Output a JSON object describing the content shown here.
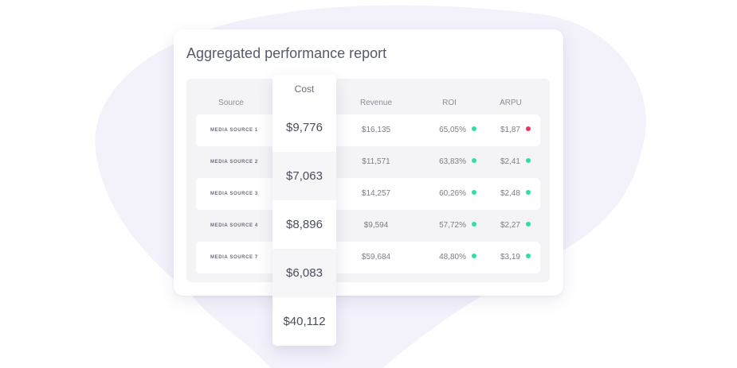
{
  "report": {
    "title": "Aggregated performance report",
    "headers": {
      "source": "Source",
      "cost": "Cost",
      "revenue": "Revenue",
      "roi": "ROI",
      "arpu": "ARPU"
    },
    "rows": [
      {
        "source": "MEDIA SOURCE 1",
        "cost": "$9,776",
        "revenue": "$16,135",
        "roi": "65,05%",
        "roi_status": "#2fe0a0",
        "arpu": "$1,87",
        "arpu_status": "#e8345a"
      },
      {
        "source": "MEDIA SOURCE 2",
        "cost": "$7,063",
        "revenue": "$11,571",
        "roi": "63,83%",
        "roi_status": "#2fe0a0",
        "arpu": "$2,41",
        "arpu_status": "#2fe0a0"
      },
      {
        "source": "MEDIA SOURCE 3",
        "cost": "$8,896",
        "revenue": "$14,257",
        "roi": "60,26%",
        "roi_status": "#2fe0a0",
        "arpu": "$2,48",
        "arpu_status": "#2fe0a0"
      },
      {
        "source": "MEDIA SOURCE 4",
        "cost": "$6,083",
        "revenue": "$9,594",
        "roi": "57,72%",
        "roi_status": "#2fe0a0",
        "arpu": "$2,27",
        "arpu_status": "#2fe0a0"
      },
      {
        "source": "MEDIA SOURCE 7",
        "cost": "$40,112",
        "revenue": "$59,684",
        "roi": "48,80%",
        "roi_status": "#2fe0a0",
        "arpu": "$3,19",
        "arpu_status": "#2fe0a0"
      }
    ]
  },
  "colors": {
    "blob": "#f3f1fa",
    "positive": "#2fe0a0",
    "negative": "#e8345a"
  }
}
